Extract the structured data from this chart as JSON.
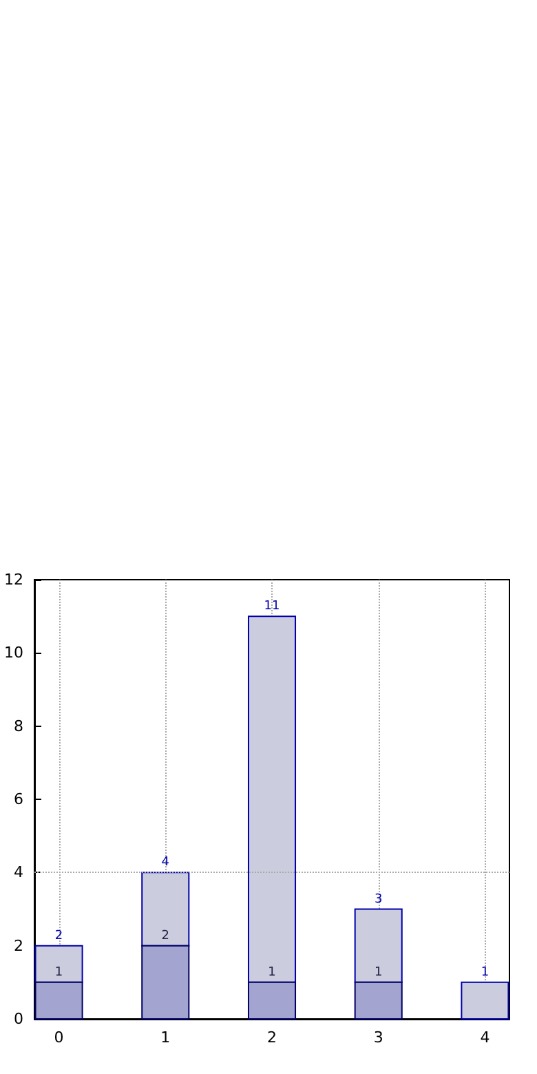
{
  "chart_data": {
    "type": "bar",
    "x": [
      0,
      1,
      2,
      3,
      4
    ],
    "series": [
      {
        "color": "#a4a4d0",
        "values": [
          1,
          2,
          1,
          1,
          null
        ],
        "value_labels": [
          "1",
          "2",
          "1",
          "1",
          null
        ]
      },
      {
        "color": "#ccccdf",
        "values": [
          1,
          2,
          10,
          2,
          1
        ]
      }
    ],
    "stacked": true,
    "totals": [
      "2",
      "4",
      "11",
      "3",
      "1"
    ],
    "xlim": [
      -0.23,
      4.23
    ],
    "xticks": [
      0,
      1,
      2,
      3,
      4
    ],
    "ylim": [
      0,
      12
    ],
    "yticks": [
      0,
      2,
      4,
      6,
      8,
      10,
      12
    ],
    "grid": "x",
    "ref_lines": [
      {
        "axis": "y",
        "value": 4,
        "line_style": "dotted",
        "color": "#aaaaaa"
      }
    ]
  }
}
